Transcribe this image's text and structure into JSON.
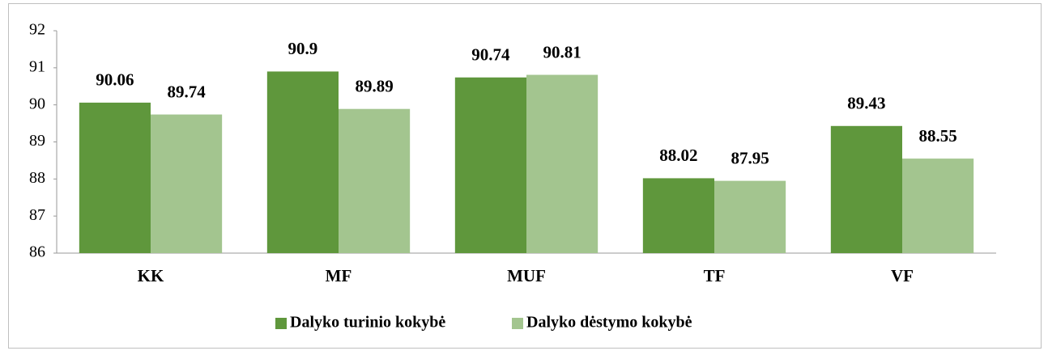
{
  "chart_data": {
    "type": "bar",
    "categories": [
      "KK",
      "MF",
      "MUF",
      "TF",
      "VF"
    ],
    "series": [
      {
        "name": "Dalyko turinio kokybė",
        "color": "#5f973c",
        "values": [
          90.06,
          90.9,
          90.74,
          88.02,
          89.43
        ]
      },
      {
        "name": "Dalyko dėstymo kokybė",
        "color": "#a3c58f",
        "values": [
          89.74,
          89.89,
          90.81,
          87.95,
          88.55
        ]
      }
    ],
    "ylim": [
      86,
      92
    ],
    "yticks": [
      86,
      87,
      88,
      89,
      90,
      91,
      92
    ],
    "grid": false,
    "legend": "bottom"
  }
}
